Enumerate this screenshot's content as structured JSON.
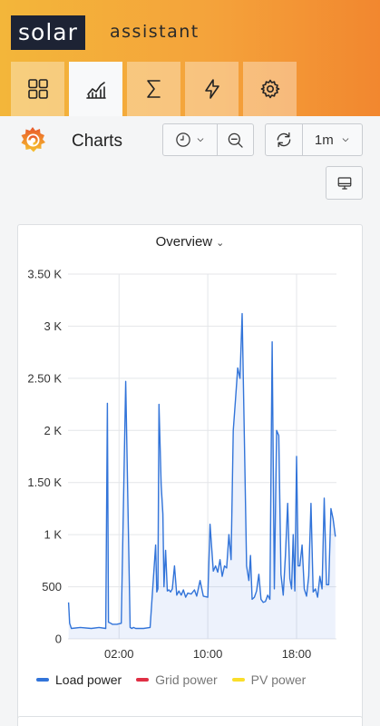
{
  "brand": {
    "logo_text": "solar",
    "logo_suffix": "assistant"
  },
  "nav_tabs": [
    {
      "icon": "dashboard-grid-icon",
      "active": false
    },
    {
      "icon": "charts-icon",
      "active": true
    },
    {
      "icon": "sigma-totals-icon",
      "active": false
    },
    {
      "icon": "lightning-power-icon",
      "active": false
    },
    {
      "icon": "gear-settings-icon",
      "active": false
    }
  ],
  "toolbar": {
    "title": "Charts",
    "refresh_interval": "1m"
  },
  "panel": {
    "title": "Overview"
  },
  "chart_data": {
    "type": "line",
    "title": "Overview",
    "ylim": [
      0,
      3500
    ],
    "yticks": [
      {
        "value": 0,
        "label": "0"
      },
      {
        "value": 500,
        "label": "500"
      },
      {
        "value": 1000,
        "label": "1 K"
      },
      {
        "value": 1500,
        "label": "1.50 K"
      },
      {
        "value": 2000,
        "label": "2 K"
      },
      {
        "value": 2500,
        "label": "2.50 K"
      },
      {
        "value": 3000,
        "label": "3 K"
      },
      {
        "value": 3500,
        "label": "3.50 K"
      }
    ],
    "xlim": [
      -2.6,
      21.6
    ],
    "xticks": [
      {
        "value": 2,
        "label": "02:00"
      },
      {
        "value": 10,
        "label": "10:00"
      },
      {
        "value": 18,
        "label": "18:00"
      }
    ],
    "grid": true,
    "legend_position": "bottom",
    "series": [
      {
        "name": "Load power",
        "color": "#3274d9",
        "x": [
          -2.55,
          -2.45,
          -2.3,
          -1.5,
          -0.5,
          0.2,
          0.8,
          0.95,
          1.05,
          1.25,
          1.4,
          1.8,
          2.2,
          2.6,
          3.0,
          3.15,
          3.3,
          3.5,
          4.2,
          4.8,
          5.3,
          5.4,
          5.5,
          5.6,
          5.8,
          5.95,
          6.05,
          6.2,
          6.35,
          6.5,
          6.65,
          6.8,
          7.0,
          7.2,
          7.4,
          7.6,
          7.8,
          8.0,
          8.2,
          8.5,
          8.8,
          9.0,
          9.3,
          9.6,
          10.0,
          10.2,
          10.4,
          10.5,
          10.7,
          10.9,
          11.1,
          11.3,
          11.5,
          11.7,
          11.9,
          12.1,
          12.3,
          12.5,
          12.7,
          12.9,
          13.1,
          13.3,
          13.5,
          13.7,
          13.85,
          14.0,
          14.2,
          14.4,
          14.6,
          14.8,
          15.0,
          15.2,
          15.4,
          15.6,
          15.8,
          16.0,
          16.2,
          16.4,
          16.6,
          16.8,
          17.0,
          17.2,
          17.4,
          17.55,
          17.7,
          17.85,
          18.0,
          18.15,
          18.3,
          18.5,
          18.7,
          18.9,
          19.1,
          19.3,
          19.5,
          19.7,
          19.9,
          20.1,
          20.3,
          20.5,
          20.7,
          20.9,
          21.1,
          21.3,
          21.5
        ],
        "values": [
          350,
          150,
          100,
          110,
          100,
          110,
          100,
          2260,
          160,
          150,
          140,
          140,
          150,
          2470,
          110,
          100,
          110,
          100,
          100,
          110,
          900,
          450,
          480,
          2250,
          1480,
          1200,
          500,
          850,
          460,
          470,
          450,
          480,
          700,
          420,
          460,
          420,
          470,
          400,
          440,
          430,
          470,
          410,
          560,
          410,
          400,
          1100,
          800,
          650,
          700,
          640,
          760,
          600,
          700,
          680,
          1000,
          760,
          2000,
          2300,
          2600,
          2500,
          3120,
          1900,
          700,
          560,
          800,
          380,
          400,
          460,
          620,
          380,
          350,
          360,
          420,
          380,
          2850,
          480,
          2000,
          1950,
          620,
          420,
          800,
          1300,
          580,
          480,
          1000,
          460,
          1750,
          700,
          700,
          900,
          480,
          410,
          600,
          1300,
          450,
          480,
          400,
          600,
          480,
          1350,
          520,
          520,
          1250,
          1150,
          980
        ]
      },
      {
        "name": "Grid power",
        "color": "#e02f44",
        "x": [],
        "values": []
      },
      {
        "name": "PV power",
        "color": "#fade2a",
        "x": [],
        "values": []
      }
    ]
  }
}
